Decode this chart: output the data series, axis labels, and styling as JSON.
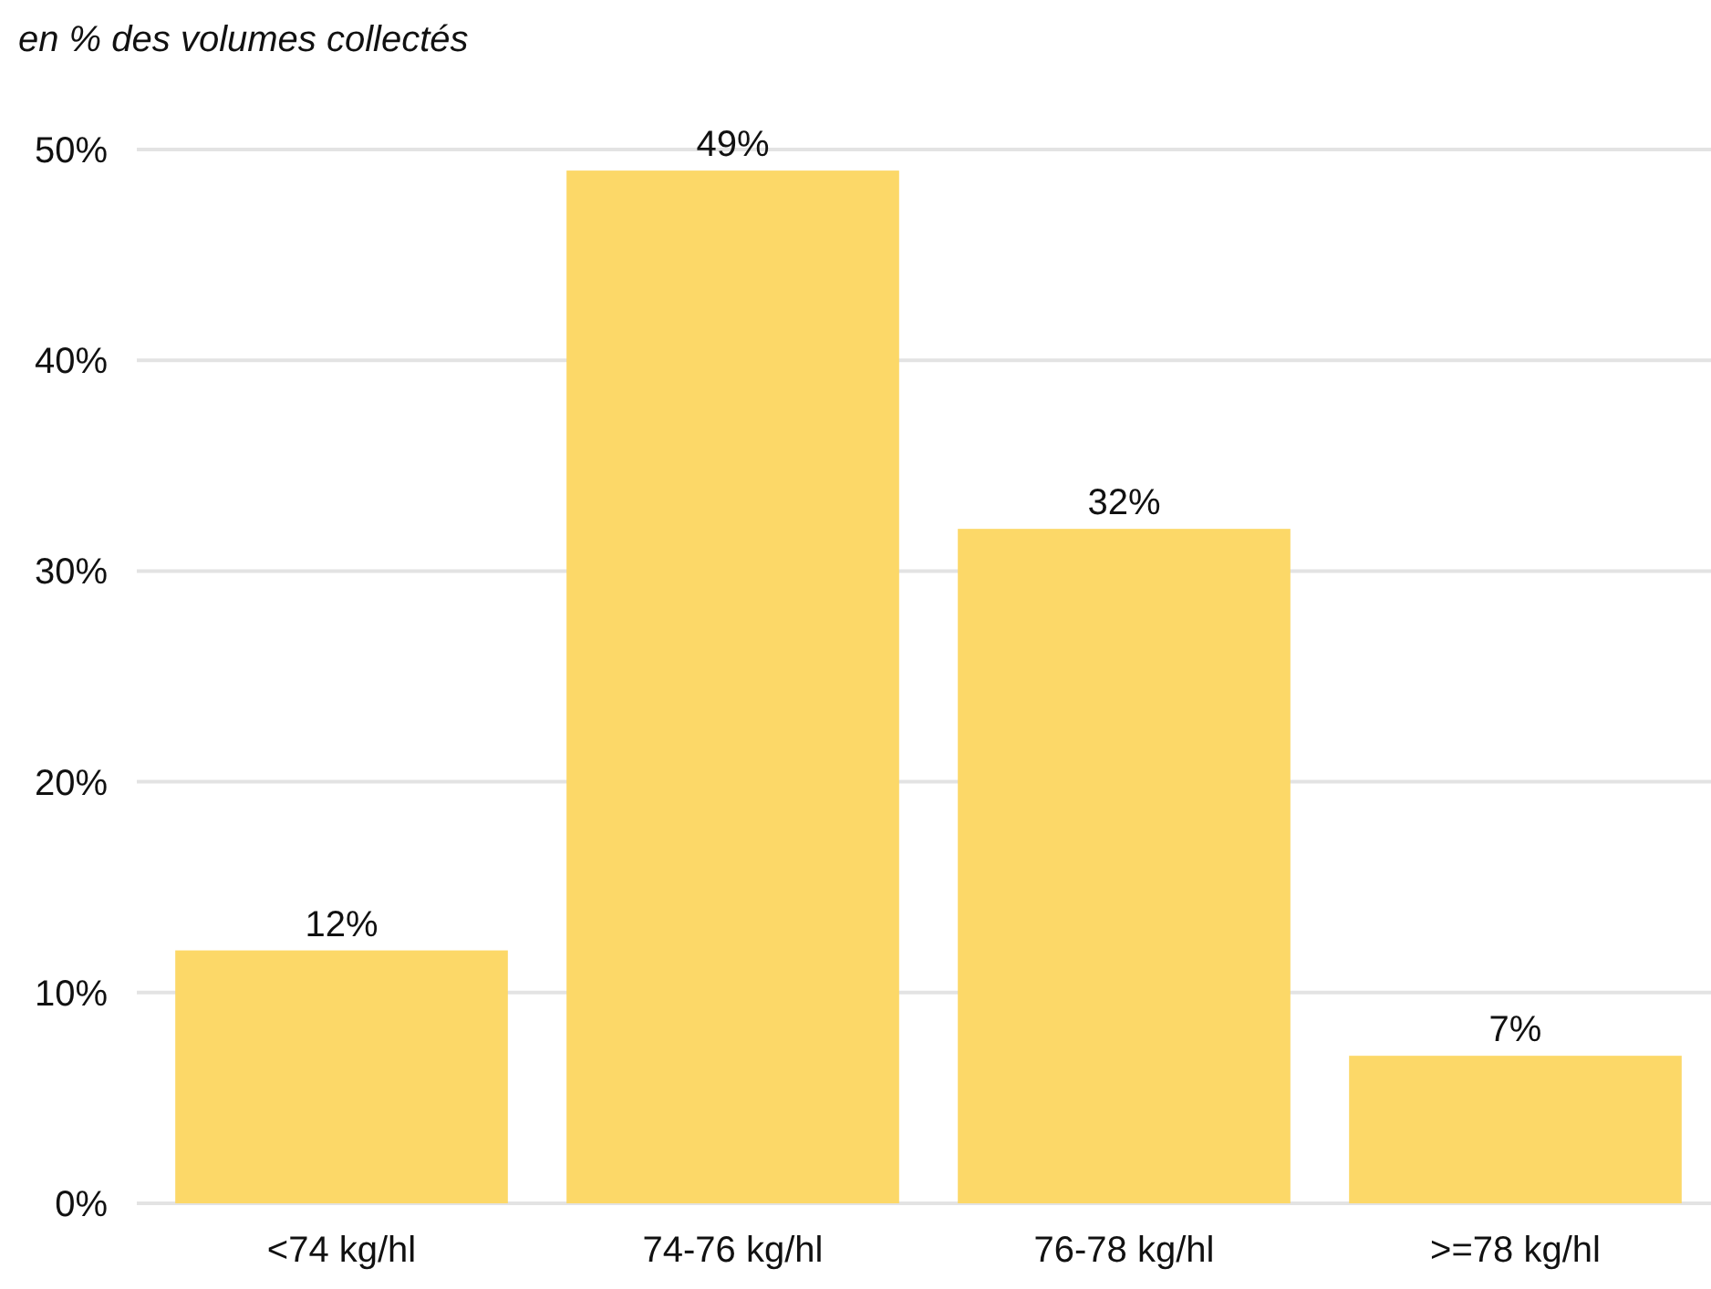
{
  "chart_data": {
    "type": "bar",
    "ylabel": "en % des volumes collectés",
    "categories": [
      "<74 kg/hl",
      "74-76 kg/hl",
      "76-78 kg/hl",
      ">=78 kg/hl"
    ],
    "values": [
      12,
      49,
      32,
      7
    ],
    "color": "#fcd868",
    "value_labels": [
      "12%",
      "49%",
      "32%",
      "7%"
    ],
    "ylim": [
      0,
      50
    ],
    "yticks": [
      {
        "value": 0,
        "label": "0%"
      },
      {
        "value": 10,
        "label": "10%"
      },
      {
        "value": 20,
        "label": "20%"
      },
      {
        "value": 30,
        "label": "30%"
      },
      {
        "value": 40,
        "label": "40%"
      },
      {
        "value": 50,
        "label": "50%"
      }
    ],
    "grid": "y"
  }
}
